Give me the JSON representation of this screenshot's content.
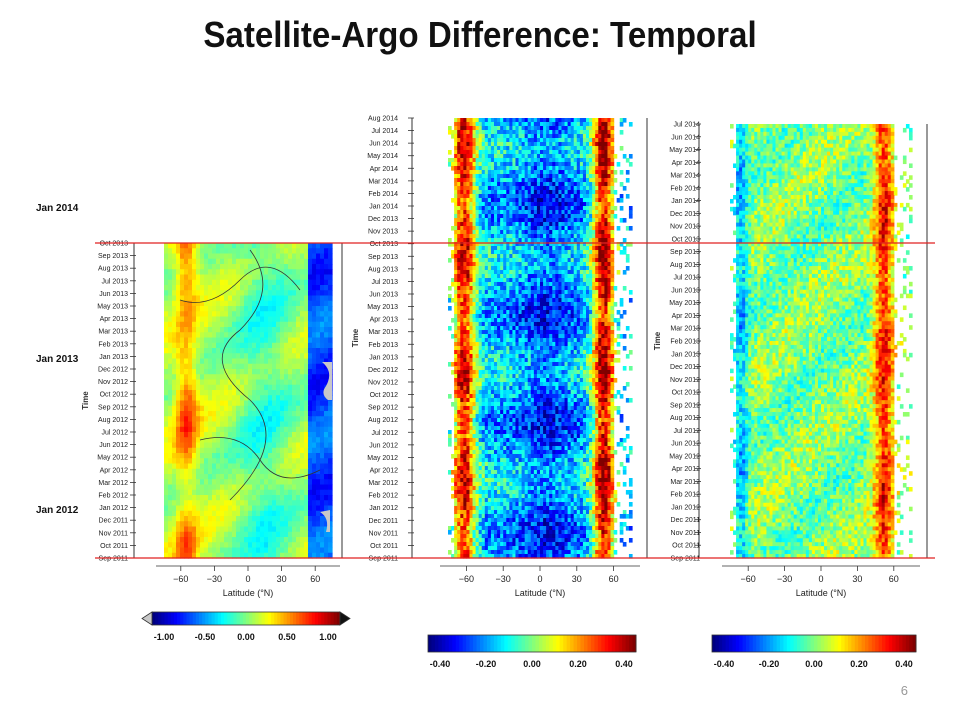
{
  "slide": {
    "title": "Satellite-Argo Difference:  Temporal",
    "year_labels": [
      "Jan 2014",
      "Jan 2013",
      "Jan 2012"
    ],
    "slide_number": "6",
    "colors": {
      "reference_line": "#e02020",
      "frame": "#333333"
    }
  },
  "chart_data": [
    {
      "type": "heatmap",
      "xlabel": "Latitude (°N)",
      "ylabel": "Time",
      "xticks": [
        -60,
        -30,
        0,
        30,
        60
      ],
      "xlim": [
        -75,
        75
      ],
      "yticks": [
        "Sep 2011",
        "Oct 2011",
        "Nov 2011",
        "Dec 2011",
        "Jan 2012",
        "Feb 2012",
        "Mar 2012",
        "Apr 2012",
        "May 2012",
        "Jun 2012",
        "Jul 2012",
        "Aug 2012",
        "Sep 2012",
        "Oct 2012",
        "Nov 2012",
        "Dec 2012",
        "Jan 2013",
        "Feb 2013",
        "Mar 2013",
        "Apr 2013",
        "May 2013",
        "Jun 2013",
        "Jul 2013",
        "Aug 2013",
        "Sep 2013",
        "Oct 2013"
      ],
      "colorbar": {
        "ticks": [
          "-1.00",
          "-0.50",
          "0.00",
          "0.50",
          "1.00"
        ],
        "range": [
          -1.0,
          1.0
        ],
        "extend": "both"
      },
      "colormap": "jet",
      "contours": true
    },
    {
      "type": "heatmap",
      "xlabel": "Latitude (°N)",
      "ylabel": "Time",
      "xticks": [
        -60,
        -30,
        0,
        30,
        60
      ],
      "xlim": [
        -75,
        75
      ],
      "yticks": [
        "Sep 2011",
        "Oct 2011",
        "Nov 2011",
        "Dec 2011",
        "Jan 2012",
        "Feb 2012",
        "Mar 2012",
        "Apr 2012",
        "May 2012",
        "Jun 2012",
        "Jul 2012",
        "Aug 2012",
        "Sep 2012",
        "Oct 2012",
        "Nov 2012",
        "Dec 2012",
        "Jan 2013",
        "Feb 2013",
        "Mar 2013",
        "Apr 2013",
        "May 2013",
        "Jun 2013",
        "Jul 2013",
        "Aug 2013",
        "Sep 2013",
        "Oct 2013",
        "Nov 2013",
        "Dec 2013",
        "Jan 2014",
        "Feb 2014",
        "Mar 2014",
        "Apr 2014",
        "May 2014",
        "Jun 2014",
        "Jul 2014",
        "Aug 2014"
      ],
      "colorbar": {
        "ticks": [
          "-0.40",
          "-0.20",
          "0.00",
          "0.20",
          "0.40"
        ],
        "range": [
          -0.4,
          0.4
        ]
      },
      "colormap": "jet"
    },
    {
      "type": "heatmap",
      "xlabel": "Latitude (°N)",
      "ylabel": "Time",
      "xticks": [
        -60,
        -30,
        0,
        30,
        60
      ],
      "xlim": [
        -75,
        75
      ],
      "yticks": [
        "Sep 2011",
        "Oct 2011",
        "Nov 2011",
        "Dec 2011",
        "Jan 2012",
        "Feb 2012",
        "Mar 2012",
        "Apr 2012",
        "May 2012",
        "Jun 2012",
        "Jul 2012",
        "Aug 2012",
        "Sep 2012",
        "Oct 2012",
        "Nov 2012",
        "Dec 2012",
        "Jan 2013",
        "Feb 2013",
        "Mar 2013",
        "Apr 2013",
        "May 2013",
        "Jun 2013",
        "Jul 2013",
        "Aug 2013",
        "Sep 2013",
        "Oct 2013",
        "Nov 2013",
        "Dec 2013",
        "Jan 2014",
        "Feb 2014",
        "Mar 2014",
        "Apr 2014",
        "May 2014",
        "Jun 2014",
        "Jul 2014"
      ],
      "colorbar": {
        "ticks": [
          "-0.40",
          "-0.20",
          "0.00",
          "0.20",
          "0.40"
        ],
        "range": [
          -0.4,
          0.4
        ]
      },
      "colormap": "jet"
    }
  ]
}
